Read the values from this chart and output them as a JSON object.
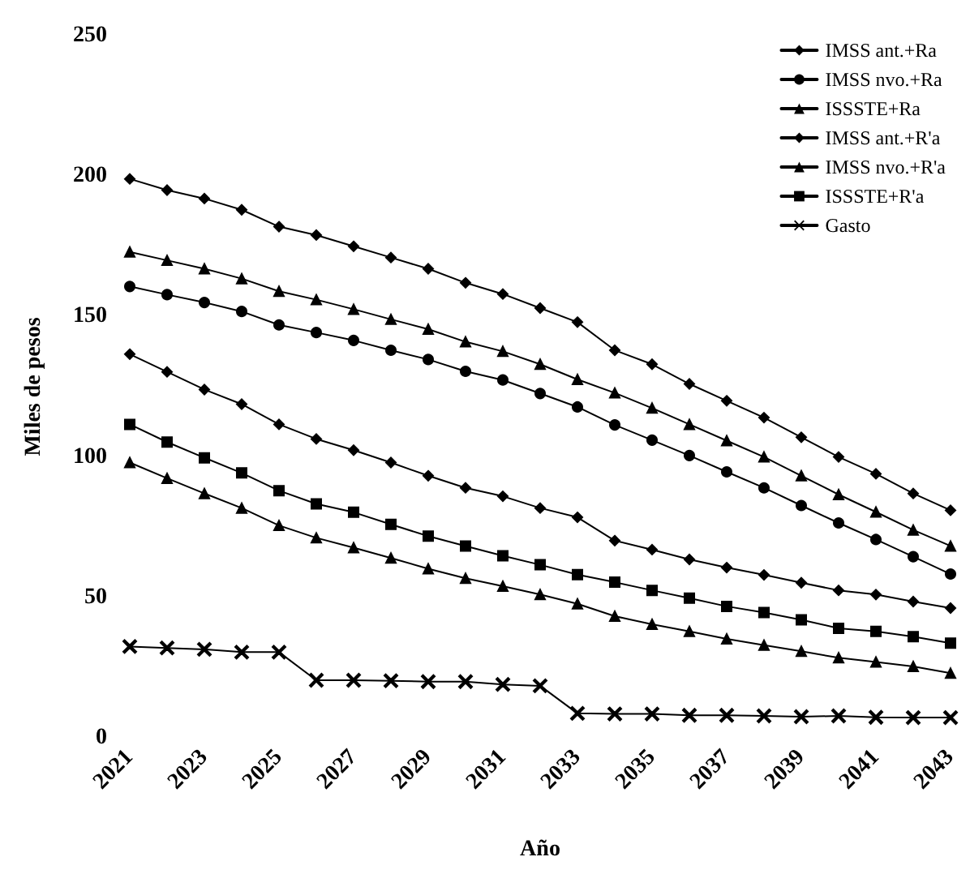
{
  "chart_data": {
    "type": "line",
    "xlabel": "Año",
    "ylabel": "Miles de pesos",
    "categories": [
      "2021",
      null,
      "2023",
      null,
      "2025",
      null,
      "2027",
      null,
      "2029",
      null,
      "2031",
      null,
      "2033",
      null,
      "2035",
      null,
      "2037",
      null,
      "2039",
      null,
      "2041",
      null,
      "2043"
    ],
    "ylim": [
      0,
      250
    ],
    "yticks": [
      0,
      50,
      100,
      150,
      200,
      250
    ],
    "grid": false,
    "legend": "top right",
    "line_style": "solid",
    "series": [
      {
        "name": "IMSS ant.+Ra",
        "color": "#000000",
        "marker": "diamond",
        "values": [
          199,
          195,
          192,
          188,
          182,
          179,
          175,
          171,
          167,
          162,
          158,
          153,
          148,
          138,
          133,
          126,
          120,
          114,
          107,
          100,
          94,
          87,
          81
        ]
      },
      {
        "name": "IMSS nvo.+Ra",
        "color": "#000000",
        "marker": "circle",
        "values": [
          160.7,
          157.8,
          155,
          151.8,
          147,
          144.3,
          141.5,
          138,
          134.7,
          130.5,
          127.4,
          122.6,
          117.8,
          111.4,
          106,
          100.5,
          94.7,
          89,
          82.7,
          76.5,
          70.6,
          64.5,
          58.3
        ]
      },
      {
        "name": "ISSSTE+Ra",
        "color": "#000000",
        "marker": "triangle",
        "values": [
          173,
          170,
          167,
          163.5,
          159,
          156,
          152.6,
          149,
          145.5,
          141,
          137.6,
          133,
          127.6,
          122.8,
          117.4,
          111.6,
          105.8,
          100,
          93.3,
          86.6,
          80.4,
          74,
          68.3
        ]
      },
      {
        "name": "IMSS ant.+R'a",
        "color": "#000000",
        "marker": "diamond",
        "values": [
          136.6,
          130.3,
          124,
          118.8,
          111.6,
          106.4,
          102.4,
          98,
          93.3,
          89,
          86,
          81.8,
          78.5,
          70.2,
          67,
          63.5,
          60.6,
          58,
          55.2,
          52.5,
          51,
          48.5,
          46.2
        ]
      },
      {
        "name": "IMSS nvo.+R'a",
        "color": "#000000",
        "marker": "triangle",
        "values": [
          98,
          92.4,
          87,
          81.8,
          75.6,
          71.2,
          67.7,
          64,
          60.2,
          56.8,
          54,
          51,
          47.7,
          43.3,
          40.4,
          37.9,
          35.2,
          33,
          30.8,
          28.5,
          27,
          25.4,
          23
        ]
      },
      {
        "name": "ISSSTE+R'a",
        "color": "#000000",
        "marker": "square",
        "values": [
          111.6,
          105.3,
          99.7,
          94.3,
          88,
          83.3,
          80.3,
          76,
          71.8,
          68.3,
          64.8,
          61.6,
          58.1,
          55.4,
          52.5,
          49.7,
          46.8,
          44.6,
          42,
          39,
          37.9,
          36,
          33.7
        ]
      },
      {
        "name": "Gasto",
        "color": "#000000",
        "marker": "cross",
        "values": [
          32.5,
          32,
          31.5,
          30.5,
          30.5,
          20.5,
          20.5,
          20.3,
          20,
          20,
          19,
          18.5,
          8.7,
          8.5,
          8.5,
          8,
          8,
          7.8,
          7.5,
          7.8,
          7.3,
          7.2,
          7.2
        ]
      }
    ]
  }
}
